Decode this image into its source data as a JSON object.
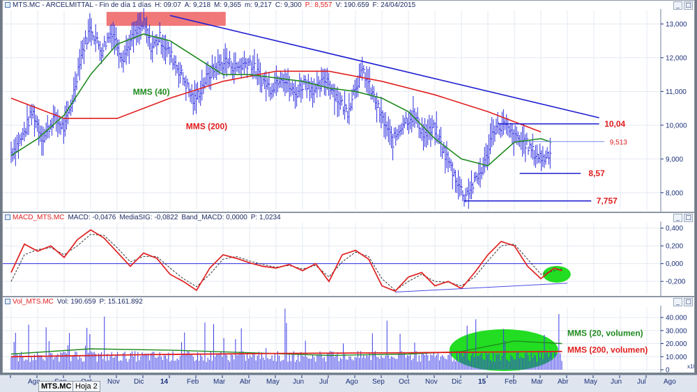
{
  "price_panel": {
    "header": [
      "MTS.MC - ARCELMITTAL - Fin de día 1 días",
      "H: 09:07",
      "A: 9,218",
      "M: 9,365",
      "m: 9,217",
      "C: 9,300"
    ],
    "header_red": "P.: 8,557",
    "header_tail": [
      "V: 190.659",
      "F: 24/04/2015"
    ],
    "labels": {
      "mms40": "MMS (40)",
      "mms200": "MMS (200)",
      "l1004": "10,04",
      "l9513": "9,513",
      "l857": "8,57",
      "l7757": "7,757"
    }
  },
  "macd_panel": {
    "header_red": "MACD_MTS.MC",
    "header": [
      "MACD: -0,0476",
      "MediaSIG: -0,0822",
      "Band_MACD: 0,0000",
      "P: 1,0234"
    ]
  },
  "vol_panel": {
    "header_red": "Vol_MTS.MC",
    "header": [
      "Vol: 190.659",
      "P: 15.161.892"
    ],
    "labels": {
      "v20": "MMS (20, volumen)",
      "v200": "MMS (200, volumen)"
    },
    "unit": "x100"
  },
  "bottom_tabs": {
    "sheet1": "MTS.MC",
    "sheet2": "Hoja 2"
  },
  "colors": {
    "price": "#2d2de0",
    "mms40": "#1f8a1f",
    "mms200": "#e01e1e",
    "trend": "#1d1dd0",
    "resistance_box": "#f07878",
    "ellipse": "#22dd22"
  },
  "chart_data": [
    {
      "type": "line",
      "name": "price",
      "ylim": [
        7.5,
        13.4
      ],
      "yticks": [
        "13,000",
        "12,000",
        "11,000",
        "10,000",
        "9,000",
        "8,000"
      ],
      "x_labels": [
        "Ago",
        "Sep",
        "Oct",
        "Nov",
        "Dic",
        "14",
        "Feb",
        "Mar",
        "Abr",
        "May",
        "Jun",
        "Jul",
        "Ago",
        "Sep",
        "Oct",
        "Nov",
        "Dic",
        "15",
        "Feb",
        "Mar",
        "Abr",
        "May",
        "Jun",
        "Jul",
        "Ago"
      ],
      "price_points": [
        [
          0,
          9.2
        ],
        [
          0.4,
          9.6
        ],
        [
          0.8,
          10.4
        ],
        [
          1.2,
          9.6
        ],
        [
          1.6,
          10.2
        ],
        [
          2.0,
          9.9
        ],
        [
          2.3,
          10.7
        ],
        [
          2.6,
          12.0
        ],
        [
          3.0,
          12.9
        ],
        [
          3.4,
          12.2
        ],
        [
          3.8,
          12.8
        ],
        [
          4.2,
          12.0
        ],
        [
          4.6,
          12.6
        ],
        [
          5.0,
          13.0
        ],
        [
          5.3,
          12.3
        ],
        [
          5.6,
          12.6
        ],
        [
          6.0,
          12.1
        ],
        [
          6.5,
          11.4
        ],
        [
          6.9,
          10.7
        ],
        [
          7.3,
          11.3
        ],
        [
          7.7,
          11.7
        ],
        [
          8.1,
          11.9
        ],
        [
          8.5,
          11.7
        ],
        [
          9.0,
          11.9
        ],
        [
          9.4,
          11.4
        ],
        [
          9.8,
          11.1
        ],
        [
          10.2,
          11.5
        ],
        [
          10.7,
          10.9
        ],
        [
          11.1,
          11.3
        ],
        [
          11.5,
          11.0
        ],
        [
          11.9,
          11.4
        ],
        [
          12.3,
          10.8
        ],
        [
          12.7,
          10.4
        ],
        [
          13.0,
          11.2
        ],
        [
          13.3,
          11.6
        ],
        [
          13.6,
          11.0
        ],
        [
          14.0,
          10.2
        ],
        [
          14.4,
          9.5
        ],
        [
          14.8,
          10.1
        ],
        [
          15.2,
          10.3
        ],
        [
          15.6,
          9.7
        ],
        [
          16.0,
          9.9
        ],
        [
          16.4,
          9.1
        ],
        [
          16.8,
          8.4
        ],
        [
          17.1,
          7.9
        ],
        [
          17.5,
          8.3
        ],
        [
          17.9,
          8.9
        ],
        [
          18.2,
          9.9
        ],
        [
          18.6,
          10.0
        ],
        [
          19.0,
          9.6
        ],
        [
          19.4,
          9.5
        ],
        [
          19.7,
          9.2
        ],
        [
          20.1,
          9.0
        ],
        [
          20.4,
          9.3
        ]
      ],
      "mms40": [
        [
          0,
          9.1
        ],
        [
          1,
          9.6
        ],
        [
          2,
          10.3
        ],
        [
          3,
          11.5
        ],
        [
          4,
          12.4
        ],
        [
          5,
          12.7
        ],
        [
          6,
          12.5
        ],
        [
          7,
          12.0
        ],
        [
          8,
          11.5
        ],
        [
          9,
          11.5
        ],
        [
          10,
          11.4
        ],
        [
          11,
          11.3
        ],
        [
          12,
          11.1
        ],
        [
          13,
          11.0
        ],
        [
          14,
          10.8
        ],
        [
          15,
          10.4
        ],
        [
          16,
          9.6
        ],
        [
          17,
          9.0
        ],
        [
          18,
          8.8
        ],
        [
          19,
          9.5
        ],
        [
          20,
          9.6
        ],
        [
          20.4,
          9.5
        ]
      ],
      "mms200": [
        [
          0,
          10.8
        ],
        [
          2,
          10.2
        ],
        [
          4,
          10.2
        ],
        [
          6,
          10.8
        ],
        [
          8,
          11.3
        ],
        [
          10,
          11.6
        ],
        [
          12,
          11.6
        ],
        [
          14,
          11.3
        ],
        [
          16,
          10.9
        ],
        [
          18,
          10.4
        ],
        [
          20,
          9.8
        ]
      ],
      "levels": [
        10.04,
        9.513,
        8.57,
        7.757
      ],
      "resistance_level": 13.15
    },
    {
      "type": "line",
      "name": "MACD",
      "ylim": [
        -0.34,
        0.46
      ],
      "yticks": [
        "0,400",
        "0,200",
        "0,000",
        "-0,200"
      ],
      "macd": [
        [
          0,
          -0.1
        ],
        [
          0.5,
          0.22
        ],
        [
          1,
          0.14
        ],
        [
          1.5,
          0.2
        ],
        [
          2,
          0.07
        ],
        [
          2.5,
          0.27
        ],
        [
          3,
          0.38
        ],
        [
          3.5,
          0.29
        ],
        [
          4,
          0.13
        ],
        [
          4.5,
          -0.03
        ],
        [
          5,
          0.12
        ],
        [
          5.5,
          0.06
        ],
        [
          6,
          -0.12
        ],
        [
          6.5,
          -0.2
        ],
        [
          7,
          -0.3
        ],
        [
          7.5,
          -0.05
        ],
        [
          8,
          0.1
        ],
        [
          8.5,
          0.06
        ],
        [
          9,
          0.01
        ],
        [
          9.5,
          -0.03
        ],
        [
          10,
          -0.05
        ],
        [
          10.5,
          -0.01
        ],
        [
          11,
          -0.08
        ],
        [
          11.5,
          0.0
        ],
        [
          12,
          -0.2
        ],
        [
          12.5,
          0.1
        ],
        [
          13,
          0.15
        ],
        [
          13.5,
          0.05
        ],
        [
          14,
          -0.25
        ],
        [
          14.5,
          -0.31
        ],
        [
          15,
          -0.15
        ],
        [
          15.5,
          -0.1
        ],
        [
          16,
          -0.25
        ],
        [
          16.5,
          -0.2
        ],
        [
          17,
          -0.28
        ],
        [
          17.5,
          -0.1
        ],
        [
          18,
          0.1
        ],
        [
          18.5,
          0.25
        ],
        [
          19,
          0.2
        ],
        [
          19.5,
          -0.03
        ],
        [
          20,
          -0.17
        ],
        [
          20.5,
          -0.05
        ],
        [
          20.8,
          -0.08
        ]
      ],
      "signal": [
        [
          0,
          -0.2
        ],
        [
          0.5,
          0.1
        ],
        [
          1,
          0.16
        ],
        [
          1.5,
          0.18
        ],
        [
          2,
          0.1
        ],
        [
          2.5,
          0.2
        ],
        [
          3,
          0.33
        ],
        [
          3.5,
          0.32
        ],
        [
          4,
          0.18
        ],
        [
          4.5,
          0.02
        ],
        [
          5,
          0.08
        ],
        [
          5.5,
          0.08
        ],
        [
          6,
          -0.05
        ],
        [
          6.5,
          -0.17
        ],
        [
          7,
          -0.26
        ],
        [
          7.5,
          -0.12
        ],
        [
          8,
          0.05
        ],
        [
          8.5,
          0.08
        ],
        [
          9,
          0.03
        ],
        [
          9.5,
          -0.01
        ],
        [
          10,
          -0.04
        ],
        [
          10.5,
          -0.02
        ],
        [
          11,
          -0.06
        ],
        [
          11.5,
          -0.02
        ],
        [
          12,
          -0.15
        ],
        [
          12.5,
          0.02
        ],
        [
          13,
          0.13
        ],
        [
          13.5,
          0.08
        ],
        [
          14,
          -0.17
        ],
        [
          14.5,
          -0.3
        ],
        [
          15,
          -0.2
        ],
        [
          15.5,
          -0.12
        ],
        [
          16,
          -0.2
        ],
        [
          16.5,
          -0.21
        ],
        [
          17,
          -0.25
        ],
        [
          17.5,
          -0.15
        ],
        [
          18,
          0.03
        ],
        [
          18.5,
          0.2
        ],
        [
          19,
          0.22
        ],
        [
          19.5,
          0.05
        ],
        [
          20,
          -0.12
        ],
        [
          20.5,
          -0.08
        ],
        [
          20.8,
          -0.06
        ]
      ],
      "support": [
        [
          14.5,
          -0.32
        ],
        [
          21.0,
          -0.22
        ]
      ]
    },
    {
      "type": "bar",
      "name": "Volumen",
      "ylim": [
        0,
        48000
      ],
      "yticks": [
        "40.000",
        "30.000",
        "20.000",
        "10.000",
        "0"
      ],
      "volume_mean": 12000,
      "mms20": [
        [
          0,
          12000
        ],
        [
          3,
          16000
        ],
        [
          6,
          15000
        ],
        [
          9,
          13000
        ],
        [
          12,
          11000
        ],
        [
          15,
          12000
        ],
        [
          17,
          14000
        ],
        [
          19,
          22000
        ],
        [
          20.8,
          20000
        ]
      ],
      "mms200": [
        [
          0,
          10000
        ],
        [
          5,
          11500
        ],
        [
          10,
          12500
        ],
        [
          15,
          13000
        ],
        [
          20.8,
          14000
        ]
      ]
    }
  ]
}
